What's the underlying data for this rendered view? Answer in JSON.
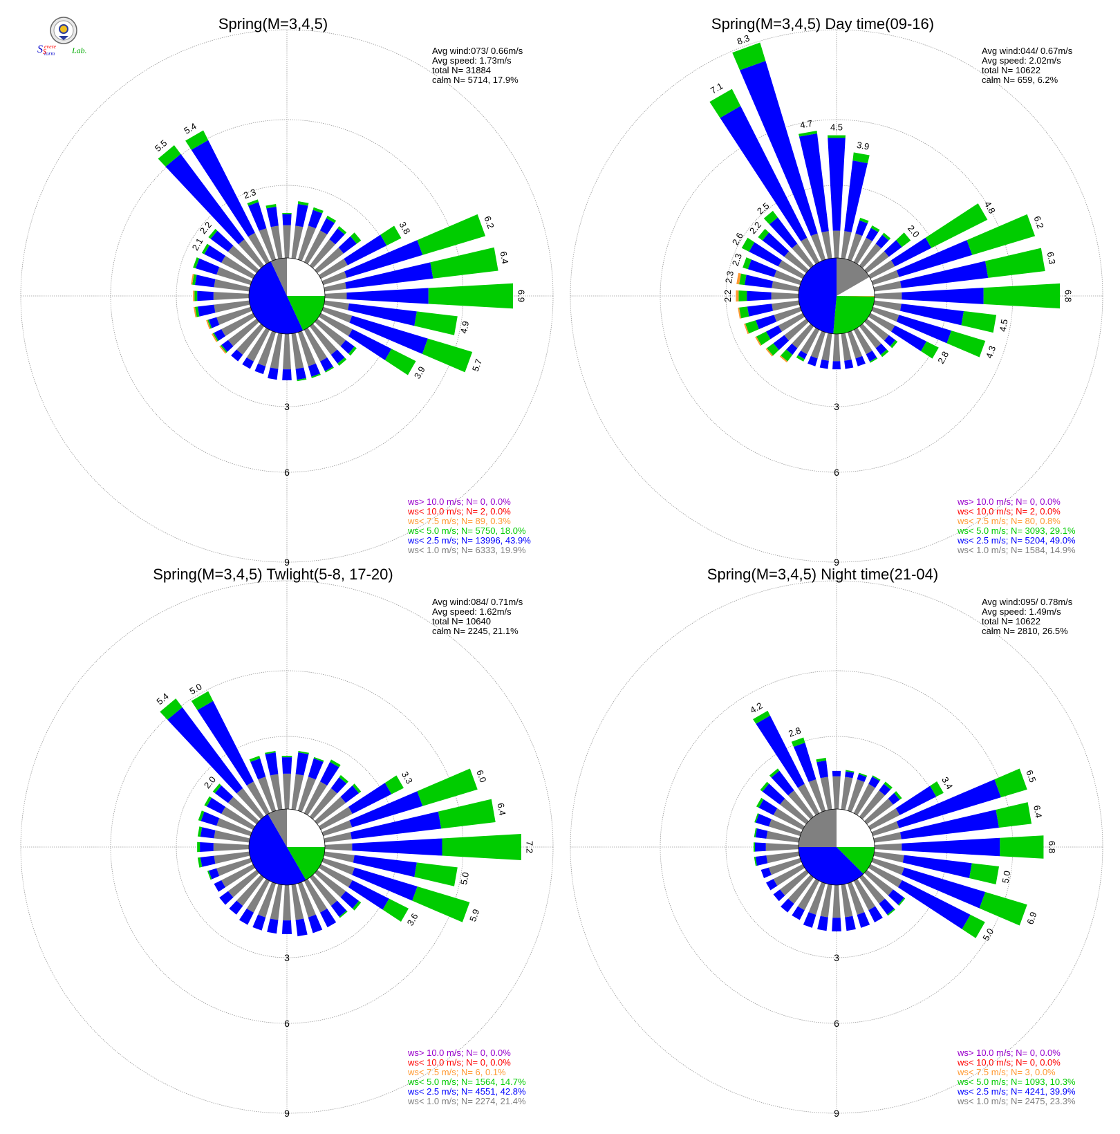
{
  "logo": {
    "text_parts": [
      "S",
      "evere",
      "S",
      "torm",
      "Lab."
    ]
  },
  "ring_labels": [
    "3",
    "6",
    "9"
  ],
  "legend_colors": [
    "#9900cc",
    "#ff0000",
    "#ff9933",
    "#00cc00",
    "#0000ff",
    "#808080"
  ],
  "chart_data": [
    {
      "type": "wind-rose",
      "title": "Spring(M=3,4,5)",
      "stats": [
        "Avg wind:073/ 0.66m/s",
        "Avg speed: 1.73m/s",
        "total N=      31884",
        "calm N=   5714,  17.9%"
      ],
      "legend": [
        "ws> 10.0 m/s; N=      0,  0.0%",
        "ws< 10.0 m/s; N=      2,  0.0%",
        "ws<  7.5 m/s; N=     89,  0.3%",
        "ws<  5.0 m/s; N=  5750, 18.0%",
        "ws<  2.5 m/s; N= 13996, 43.9%",
        "ws<  1.0 m/s; N=  6333, 19.9%"
      ],
      "calm_pie": [
        [
          "#ffffff",
          0,
          90
        ],
        [
          "#00cc00",
          90,
          155
        ],
        [
          "#0000ff",
          155,
          335
        ],
        [
          "#808080",
          335,
          360
        ]
      ],
      "bars": [
        {
          "dir": 0,
          "g": 1.2,
          "b": 0.4,
          "gr": 0.05
        },
        {
          "dir": 10,
          "g": 1.2,
          "b": 0.8,
          "gr": 0.1
        },
        {
          "dir": 20,
          "g": 1.3,
          "b": 0.6,
          "gr": 0.1
        },
        {
          "dir": 30,
          "g": 1.3,
          "b": 0.5,
          "gr": 0.1
        },
        {
          "dir": 40,
          "g": 1.2,
          "b": 0.5,
          "gr": 0.1
        },
        {
          "dir": 50,
          "g": 1.2,
          "b": 0.6,
          "gr": 0.2
        },
        {
          "dir": 60,
          "g": 1.1,
          "b": 1.6,
          "gr": 0.6,
          "label": "3.8"
        },
        {
          "dir": 70,
          "g": 0.9,
          "b": 2.9,
          "gr": 2.4,
          "label": "6.2"
        },
        {
          "dir": 80,
          "g": 0.8,
          "b": 3.2,
          "gr": 2.4,
          "label": "6.4"
        },
        {
          "dir": 90,
          "g": 0.8,
          "b": 3.0,
          "gr": 3.1,
          "label": "6.9"
        },
        {
          "dir": 100,
          "g": 0.9,
          "b": 2.5,
          "gr": 1.5,
          "label": "4.9"
        },
        {
          "dir": 110,
          "g": 1.1,
          "b": 2.9,
          "gr": 1.7,
          "label": "5.7"
        },
        {
          "dir": 120,
          "g": 1.3,
          "b": 1.6,
          "gr": 1.0,
          "label": "3.9"
        },
        {
          "dir": 130,
          "g": 1.3,
          "b": 0.4,
          "gr": 0.1
        },
        {
          "dir": 140,
          "g": 1.3,
          "b": 0.4,
          "gr": 0.1
        },
        {
          "dir": 150,
          "g": 1.3,
          "b": 0.4,
          "gr": 0.05
        },
        {
          "dir": 160,
          "g": 1.3,
          "b": 0.4,
          "gr": 0.05
        },
        {
          "dir": 170,
          "g": 1.3,
          "b": 0.4,
          "gr": 0.05
        },
        {
          "dir": 180,
          "g": 1.3,
          "b": 0.4
        },
        {
          "dir": 190,
          "g": 1.3,
          "b": 0.4
        },
        {
          "dir": 200,
          "g": 1.3,
          "b": 0.3
        },
        {
          "dir": 210,
          "g": 1.3,
          "b": 0.3
        },
        {
          "dir": 220,
          "g": 1.3,
          "b": 0.3
        },
        {
          "dir": 230,
          "g": 1.3,
          "b": 0.3,
          "gr": 0.05,
          "o": 0.05
        },
        {
          "dir": 240,
          "g": 1.3,
          "b": 0.3,
          "gr": 0.05,
          "o": 0.05
        },
        {
          "dir": 250,
          "g": 1.3,
          "b": 0.3,
          "gr": 0.05,
          "o": 0.05
        },
        {
          "dir": 260,
          "g": 1.3,
          "b": 0.6,
          "gr": 0.1,
          "o": 0.05
        },
        {
          "dir": 270,
          "g": 1.3,
          "b": 0.6,
          "gr": 0.1,
          "o": 0.05
        },
        {
          "dir": 280,
          "g": 1.3,
          "b": 0.7,
          "gr": 0.1,
          "o": 0.05
        },
        {
          "dir": 290,
          "g": 1.3,
          "b": 0.8,
          "gr": 0.1
        },
        {
          "dir": 300,
          "g": 1.3,
          "b": 0.7,
          "gr": 0.1,
          "label": "2.1"
        },
        {
          "dir": 310,
          "g": 1.3,
          "b": 0.8,
          "gr": 0.1,
          "label": "2.2"
        },
        {
          "dir": 320,
          "g": 1.2,
          "b": 3.9,
          "gr": 0.4,
          "label": "5.5"
        },
        {
          "dir": 330,
          "g": 1.2,
          "b": 3.8,
          "gr": 0.4,
          "label": "5.4"
        },
        {
          "dir": 340,
          "g": 1.2,
          "b": 1.0,
          "gr": 0.1,
          "label": "2.3"
        },
        {
          "dir": 350,
          "g": 1.2,
          "b": 0.7,
          "gr": 0.1
        }
      ]
    },
    {
      "type": "wind-rose",
      "title": "Spring(M=3,4,5) Day time(09-16)",
      "stats": [
        "Avg wind:044/ 0.67m/s",
        "Avg speed: 2.02m/s",
        "total N=      10622",
        "calm N=    659,   6.2%"
      ],
      "legend": [
        "ws> 10.0 m/s; N=      0,  0.0%",
        "ws< 10.0 m/s; N=      2,  0.0%",
        "ws<  7.5 m/s; N=     80,  0.8%",
        "ws<  5.0 m/s; N=  3093, 29.1%",
        "ws<  2.5 m/s; N=  5204, 49.0%",
        "ws<  1.0 m/s; N=  1584, 14.9%"
      ],
      "calm_pie": [
        [
          "#ffffff",
          60,
          90
        ],
        [
          "#ff9933",
          90,
          91
        ],
        [
          "#00cc00",
          91,
          185
        ],
        [
          "#0000ff",
          185,
          360
        ],
        [
          "#808080",
          0,
          60
        ]
      ],
      "bars": [
        {
          "dir": 0,
          "g": 1.0,
          "b": 3.4,
          "gr": 0.1,
          "label": "4.5"
        },
        {
          "dir": 10,
          "g": 1.0,
          "b": 2.6,
          "gr": 0.3,
          "label": "3.9"
        },
        {
          "dir": 20,
          "g": 1.0,
          "b": 0.5,
          "gr": 0.1
        },
        {
          "dir": 30,
          "g": 1.0,
          "b": 0.4,
          "gr": 0.1
        },
        {
          "dir": 40,
          "g": 1.0,
          "b": 0.4,
          "gr": 0.1
        },
        {
          "dir": 50,
          "g": 1.0,
          "b": 0.6,
          "gr": 0.4,
          "label": "2.0"
        },
        {
          "dir": 60,
          "g": 1.0,
          "b": 1.5,
          "gr": 2.3,
          "label": "4.8"
        },
        {
          "dir": 70,
          "g": 1.0,
          "b": 2.8,
          "gr": 2.4,
          "label": "6.2"
        },
        {
          "dir": 80,
          "g": 1.0,
          "b": 3.2,
          "gr": 2.1,
          "label": "6.3"
        },
        {
          "dir": 90,
          "g": 1.0,
          "b": 3.0,
          "gr": 2.8,
          "label": "6.8"
        },
        {
          "dir": 100,
          "g": 1.0,
          "b": 2.3,
          "gr": 1.2,
          "label": "4.5"
        },
        {
          "dir": 110,
          "g": 1.0,
          "b": 2.0,
          "gr": 1.3,
          "label": "4.3"
        },
        {
          "dir": 120,
          "g": 1.0,
          "b": 1.3,
          "gr": 0.5,
          "label": "2.8"
        },
        {
          "dir": 130,
          "g": 1.0,
          "b": 0.3,
          "gr": 0.1
        },
        {
          "dir": 140,
          "g": 1.0,
          "b": 0.3,
          "gr": 0.1
        },
        {
          "dir": 150,
          "g": 1.0,
          "b": 0.3,
          "gr": 0.05
        },
        {
          "dir": 160,
          "g": 1.0,
          "b": 0.3
        },
        {
          "dir": 170,
          "g": 1.0,
          "b": 0.3
        },
        {
          "dir": 180,
          "g": 1.0,
          "b": 0.3
        },
        {
          "dir": 190,
          "g": 1.0,
          "b": 0.3
        },
        {
          "dir": 200,
          "g": 1.0,
          "b": 0.3
        },
        {
          "dir": 210,
          "g": 1.0,
          "b": 0.2,
          "gr": 0.1
        },
        {
          "dir": 220,
          "g": 1.0,
          "b": 0.3,
          "gr": 0.3,
          "o": 0.05
        },
        {
          "dir": 230,
          "g": 1.0,
          "b": 0.5,
          "gr": 0.3,
          "o": 0.05
        },
        {
          "dir": 240,
          "g": 1.0,
          "b": 0.5,
          "gr": 0.4,
          "o": 0.05
        },
        {
          "dir": 250,
          "g": 1.0,
          "b": 0.7,
          "gr": 0.4,
          "o": 0.05
        },
        {
          "dir": 260,
          "g": 1.0,
          "b": 0.9,
          "gr": 0.3,
          "o": 0.05
        },
        {
          "dir": 270,
          "g": 1.0,
          "b": 0.9,
          "gr": 0.3,
          "o": 0.1,
          "label": "2.2"
        },
        {
          "dir": 280,
          "g": 1.0,
          "b": 1.0,
          "gr": 0.2,
          "o": 0.1,
          "label": "2.3"
        },
        {
          "dir": 290,
          "g": 1.0,
          "b": 1.0,
          "gr": 0.2,
          "label": "2.3"
        },
        {
          "dir": 300,
          "g": 1.0,
          "b": 1.2,
          "gr": 0.3,
          "label": "2.6"
        },
        {
          "dir": 310,
          "g": 1.0,
          "b": 1.0,
          "gr": 0.2,
          "label": "2.2"
        },
        {
          "dir": 320,
          "g": 1.0,
          "b": 1.2,
          "gr": 0.3,
          "label": "2.5"
        },
        {
          "dir": 330,
          "g": 1.0,
          "b": 5.4,
          "gr": 0.7,
          "label": "7.1"
        },
        {
          "dir": 340,
          "g": 1.0,
          "b": 6.6,
          "gr": 0.7,
          "label": "8.3"
        },
        {
          "dir": 350,
          "g": 1.0,
          "b": 3.6,
          "gr": 0.1,
          "label": "4.7"
        }
      ]
    },
    {
      "type": "wind-rose",
      "title": "Spring(M=3,4,5) Twlight(5-8, 17-20)",
      "stats": [
        "Avg wind:084/ 0.71m/s",
        "Avg speed: 1.62m/s",
        "total N=      10640",
        "calm N=   2245,  21.1%"
      ],
      "legend": [
        "ws> 10.0 m/s; N=      0,  0.0%",
        "ws< 10.0 m/s; N=      0,  0.0%",
        "ws<  7.5 m/s; N=      6,  0.1%",
        "ws<  5.0 m/s; N=  1564, 14.7%",
        "ws<  2.5 m/s; N=  4551, 42.8%",
        "ws<  1.0 m/s; N=  2274, 21.4%"
      ],
      "calm_pie": [
        [
          "#ffffff",
          0,
          90
        ],
        [
          "#00cc00",
          90,
          150
        ],
        [
          "#0000ff",
          150,
          330
        ],
        [
          "#808080",
          330,
          360
        ]
      ],
      "bars": [
        {
          "dir": 0,
          "g": 1.3,
          "b": 0.6,
          "gr": 0.05
        },
        {
          "dir": 10,
          "g": 1.3,
          "b": 0.8,
          "gr": 0.05
        },
        {
          "dir": 20,
          "g": 1.3,
          "b": 0.7,
          "gr": 0.05
        },
        {
          "dir": 30,
          "g": 1.3,
          "b": 0.8,
          "gr": 0.1
        },
        {
          "dir": 40,
          "g": 1.3,
          "b": 0.5,
          "gr": 0.1
        },
        {
          "dir": 50,
          "g": 1.3,
          "b": 0.6,
          "gr": 0.1
        },
        {
          "dir": 60,
          "g": 1.3,
          "b": 1.6,
          "gr": 0.5,
          "label": "3.3"
        },
        {
          "dir": 70,
          "g": 1.1,
          "b": 2.7,
          "gr": 2.1,
          "label": "6.0"
        },
        {
          "dir": 80,
          "g": 1.0,
          "b": 3.3,
          "gr": 2.0,
          "label": "6.4"
        },
        {
          "dir": 90,
          "g": 1.0,
          "b": 3.3,
          "gr": 2.9,
          "label": "7.2"
        },
        {
          "dir": 100,
          "g": 1.1,
          "b": 2.3,
          "gr": 1.5,
          "label": "5.0"
        },
        {
          "dir": 110,
          "g": 1.2,
          "b": 2.4,
          "gr": 2.0,
          "label": "5.9"
        },
        {
          "dir": 120,
          "g": 1.3,
          "b": 1.5,
          "gr": 0.8,
          "label": "3.6"
        },
        {
          "dir": 130,
          "g": 1.3,
          "b": 0.6,
          "gr": 0.1
        },
        {
          "dir": 140,
          "g": 1.3,
          "b": 0.5,
          "gr": 0.05
        },
        {
          "dir": 150,
          "g": 1.3,
          "b": 0.6
        },
        {
          "dir": 160,
          "g": 1.3,
          "b": 0.6
        },
        {
          "dir": 170,
          "g": 1.3,
          "b": 0.6
        },
        {
          "dir": 180,
          "g": 1.3,
          "b": 0.5
        },
        {
          "dir": 190,
          "g": 1.3,
          "b": 0.5
        },
        {
          "dir": 200,
          "g": 1.3,
          "b": 0.5
        },
        {
          "dir": 210,
          "g": 1.3,
          "b": 0.5
        },
        {
          "dir": 220,
          "g": 1.3,
          "b": 0.4
        },
        {
          "dir": 230,
          "g": 1.3,
          "b": 0.4
        },
        {
          "dir": 240,
          "g": 1.3,
          "b": 0.3
        },
        {
          "dir": 250,
          "g": 1.3,
          "b": 0.3,
          "gr": 0.05
        },
        {
          "dir": 260,
          "g": 1.3,
          "b": 0.5,
          "gr": 0.1
        },
        {
          "dir": 270,
          "g": 1.3,
          "b": 0.5,
          "gr": 0.1
        },
        {
          "dir": 280,
          "g": 1.3,
          "b": 0.5,
          "gr": 0.1
        },
        {
          "dir": 290,
          "g": 1.3,
          "b": 0.6,
          "gr": 0.1
        },
        {
          "dir": 300,
          "g": 1.3,
          "b": 0.6,
          "gr": 0.1
        },
        {
          "dir": 310,
          "g": 1.3,
          "b": 0.6,
          "gr": 0.1,
          "label": "2.0"
        },
        {
          "dir": 320,
          "g": 1.3,
          "b": 3.7,
          "gr": 0.4,
          "label": "5.4"
        },
        {
          "dir": 330,
          "g": 1.3,
          "b": 3.3,
          "gr": 0.4,
          "label": "5.0"
        },
        {
          "dir": 340,
          "g": 1.3,
          "b": 0.7,
          "gr": 0.1
        },
        {
          "dir": 350,
          "g": 1.3,
          "b": 0.8,
          "gr": 0.05
        }
      ]
    },
    {
      "type": "wind-rose",
      "title": "Spring(M=3,4,5) Night time(21-04)",
      "stats": [
        "Avg wind:095/ 0.78m/s",
        "Avg speed: 1.49m/s",
        "total N=      10622",
        "calm N=   2810,  26.5%"
      ],
      "legend": [
        "ws> 10.0 m/s; N=      0,  0.0%",
        "ws< 10.0 m/s; N=      0,  0.0%",
        "ws<  7.5 m/s; N=      3,  0.0%",
        "ws<  5.0 m/s; N=  1093, 10.3%",
        "ws<  2.5 m/s; N=  4241, 39.9%",
        "ws<  1.0 m/s; N=  2475, 23.3%"
      ],
      "calm_pie": [
        [
          "#ffffff",
          0,
          90
        ],
        [
          "#00cc00",
          90,
          135
        ],
        [
          "#0000ff",
          135,
          270
        ],
        [
          "#808080",
          270,
          360
        ]
      ],
      "bars": [
        {
          "dir": 0,
          "g": 1.2,
          "b": 0.2
        },
        {
          "dir": 10,
          "g": 1.2,
          "b": 0.2,
          "gr": 0.05
        },
        {
          "dir": 20,
          "g": 1.2,
          "b": 0.2,
          "gr": 0.05
        },
        {
          "dir": 30,
          "g": 1.2,
          "b": 0.3,
          "gr": 0.05
        },
        {
          "dir": 40,
          "g": 1.2,
          "b": 0.3,
          "gr": 0.1
        },
        {
          "dir": 50,
          "g": 1.2,
          "b": 0.3,
          "gr": 0.1
        },
        {
          "dir": 60,
          "g": 1.2,
          "b": 1.5,
          "gr": 0.3,
          "label": "3.4"
        },
        {
          "dir": 70,
          "g": 1.0,
          "b": 3.9,
          "gr": 1.0,
          "label": "6.5"
        },
        {
          "dir": 80,
          "g": 1.0,
          "b": 3.6,
          "gr": 1.2,
          "label": "6.4"
        },
        {
          "dir": 90,
          "g": 1.0,
          "b": 3.6,
          "gr": 1.6,
          "label": "6.8"
        },
        {
          "dir": 100,
          "g": 1.1,
          "b": 2.5,
          "gr": 1.0,
          "label": "5.0"
        },
        {
          "dir": 110,
          "g": 1.2,
          "b": 3.1,
          "gr": 1.6,
          "label": "6.9"
        },
        {
          "dir": 120,
          "g": 1.3,
          "b": 2.8,
          "gr": 0.6,
          "label": "5.0"
        },
        {
          "dir": 130,
          "g": 1.2,
          "b": 0.5,
          "gr": 0.05
        },
        {
          "dir": 140,
          "g": 1.2,
          "b": 0.5,
          "gr": 0.05
        },
        {
          "dir": 150,
          "g": 1.2,
          "b": 0.5
        },
        {
          "dir": 160,
          "g": 1.2,
          "b": 0.5
        },
        {
          "dir": 170,
          "g": 1.2,
          "b": 0.5
        },
        {
          "dir": 180,
          "g": 1.2,
          "b": 0.5
        },
        {
          "dir": 190,
          "g": 1.2,
          "b": 0.5
        },
        {
          "dir": 200,
          "g": 1.2,
          "b": 0.5
        },
        {
          "dir": 210,
          "g": 1.2,
          "b": 0.4
        },
        {
          "dir": 220,
          "g": 1.2,
          "b": 0.4
        },
        {
          "dir": 230,
          "g": 1.2,
          "b": 0.3
        },
        {
          "dir": 240,
          "g": 1.2,
          "b": 0.3
        },
        {
          "dir": 250,
          "g": 1.2,
          "b": 0.3
        },
        {
          "dir": 260,
          "g": 1.2,
          "b": 0.4,
          "gr": 0.05
        },
        {
          "dir": 270,
          "g": 1.2,
          "b": 0.4,
          "gr": 0.05
        },
        {
          "dir": 280,
          "g": 1.2,
          "b": 0.4,
          "gr": 0.05
        },
        {
          "dir": 290,
          "g": 1.2,
          "b": 0.5,
          "gr": 0.05
        },
        {
          "dir": 300,
          "g": 1.2,
          "b": 0.6,
          "gr": 0.1
        },
        {
          "dir": 310,
          "g": 1.2,
          "b": 0.8,
          "gr": 0.1
        },
        {
          "dir": 320,
          "g": 1.2,
          "b": 0.9,
          "gr": 0.1
        },
        {
          "dir": 330,
          "g": 1.2,
          "b": 2.8,
          "gr": 0.2,
          "label": "4.2"
        },
        {
          "dir": 340,
          "g": 1.2,
          "b": 1.4,
          "gr": 0.2,
          "label": "2.8"
        },
        {
          "dir": 350,
          "g": 1.2,
          "b": 0.6,
          "gr": 0.1
        }
      ]
    }
  ]
}
